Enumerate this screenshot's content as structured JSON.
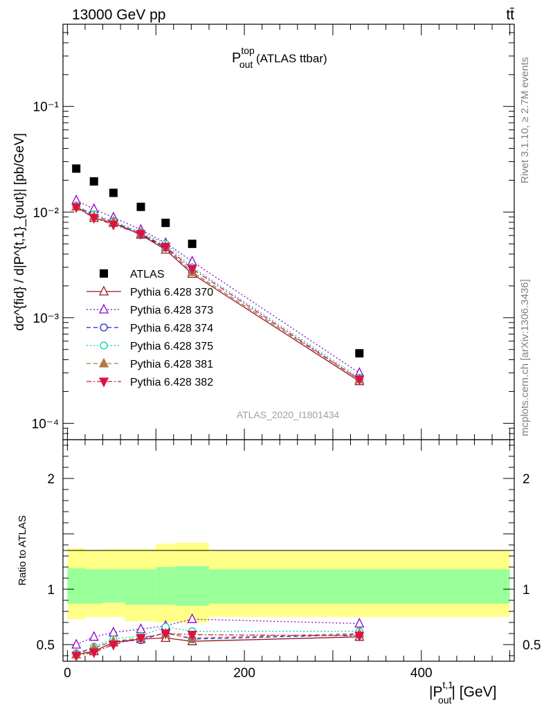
{
  "header": {
    "energy_label": "13000 GeV pp",
    "process_label": "tt̄"
  },
  "side_labels": {
    "rivet": "Rivet 3.1.10, ≥ 2.7M events",
    "mcplots": "mcplots.cern.ch [arXiv:1306.3436]"
  },
  "chart_data": [
    {
      "type": "scatter",
      "panel": "main",
      "title": {
        "main": "P",
        "sup": "top",
        "sub": "out",
        "suffix": " (ATLAS ttbar)"
      },
      "ylabel": "dσ^{fid} / d|P^{t,1}_{out}| [pb/GeV]",
      "yscale": "log",
      "ylim": [
        7e-05,
        0.6
      ],
      "xlim": [
        -5,
        505
      ],
      "ytick_labels": [
        "10⁻⁴",
        "10⁻³",
        "10⁻²",
        "10⁻¹"
      ],
      "watermark": "ATLAS_2020_I1801434",
      "legend_position": "center-left",
      "x": [
        10,
        30,
        52,
        83,
        111,
        141,
        330
      ],
      "series": [
        {
          "name": "ATLAS",
          "color": "#000000",
          "marker": "square",
          "line": "none",
          "values": [
            0.0258,
            0.0195,
            0.0152,
            0.0112,
            0.0079,
            0.005,
            0.00046
          ]
        },
        {
          "name": "Pythia 6.428 370",
          "color": "#8b1a1a",
          "marker": "triangle-open",
          "line": "solid",
          "values": [
            0.0113,
            0.0088,
            0.0079,
            0.0061,
            0.0044,
            0.0026,
            0.00025
          ]
        },
        {
          "name": "Pythia 6.428 373",
          "color": "#8b00cc",
          "marker": "triangle-open",
          "line": "dotted",
          "values": [
            0.0129,
            0.0107,
            0.0089,
            0.0068,
            0.0051,
            0.0034,
            0.0003
          ]
        },
        {
          "name": "Pythia 6.428 374",
          "color": "#2222cc",
          "marker": "circle-open",
          "line": "dashed",
          "values": [
            0.0114,
            0.0093,
            0.008,
            0.0061,
            0.0046,
            0.0027,
            0.00026
          ]
        },
        {
          "name": "Pythia 6.428 375",
          "color": "#00ccaa",
          "marker": "circle-open",
          "line": "dotted",
          "values": [
            0.0115,
            0.0095,
            0.0082,
            0.0064,
            0.005,
            0.003,
            0.00027
          ]
        },
        {
          "name": "Pythia 6.428 381",
          "color": "#b07840",
          "marker": "triangle",
          "line": "dashed",
          "values": [
            0.0112,
            0.0091,
            0.0081,
            0.0063,
            0.0047,
            0.0027,
            0.00026
          ]
        },
        {
          "name": "Pythia 6.428 382",
          "color": "#dd1144",
          "marker": "triangle-down",
          "line": "dashdot",
          "values": [
            0.0111,
            0.0088,
            0.0076,
            0.0062,
            0.0047,
            0.0029,
            0.00026
          ]
        }
      ]
    },
    {
      "type": "scatter",
      "panel": "ratio",
      "ylabel": "Ratio to ATLAS",
      "ylim": [
        0.35,
        2.35
      ],
      "xlim": [
        -5,
        505
      ],
      "xlabel": {
        "main": "|P",
        "sup": "t,1",
        "sub": "out",
        "suffix": "| [GeV]"
      },
      "xtick_labels": [
        "0",
        "200",
        "400"
      ],
      "ytick_labels": [
        "0.5",
        "1",
        "2"
      ],
      "bin_edges": [
        0,
        20,
        40,
        65,
        100,
        122,
        160,
        500
      ],
      "band_inner": [
        [
          0.87,
          1.19
        ],
        [
          0.87,
          1.18
        ],
        [
          0.88,
          1.18
        ],
        [
          0.86,
          1.18
        ],
        [
          0.86,
          1.2
        ],
        [
          0.85,
          1.21
        ],
        [
          0.87,
          1.18
        ]
      ],
      "band_outer": [
        [
          0.73,
          1.37
        ],
        [
          0.75,
          1.35
        ],
        [
          0.75,
          1.36
        ],
        [
          0.71,
          1.36
        ],
        [
          0.7,
          1.41
        ],
        [
          0.7,
          1.42
        ],
        [
          0.75,
          1.35
        ]
      ],
      "band_colors": {
        "inner": "#99ff99",
        "outer": "#ffff88"
      },
      "x": [
        10,
        30,
        52,
        83,
        111,
        141,
        330
      ],
      "series": [
        {
          "name": "Pythia 6.428 370",
          "values": [
            0.41,
            0.44,
            0.52,
            0.55,
            0.56,
            0.53,
            0.57
          ]
        },
        {
          "name": "Pythia 6.428 373",
          "values": [
            0.5,
            0.57,
            0.61,
            0.64,
            0.67,
            0.73,
            0.69
          ]
        },
        {
          "name": "Pythia 6.428 374",
          "values": [
            0.42,
            0.47,
            0.53,
            0.54,
            0.61,
            0.55,
            0.59
          ]
        },
        {
          "name": "Pythia 6.428 375",
          "values": [
            0.42,
            0.48,
            0.55,
            0.58,
            0.66,
            0.62,
            0.62
          ]
        },
        {
          "name": "Pythia 6.428 381",
          "values": [
            0.41,
            0.47,
            0.53,
            0.56,
            0.6,
            0.56,
            0.6
          ]
        },
        {
          "name": "Pythia 6.428 382",
          "values": [
            0.4,
            0.43,
            0.5,
            0.56,
            0.6,
            0.59,
            0.58
          ]
        }
      ]
    }
  ]
}
